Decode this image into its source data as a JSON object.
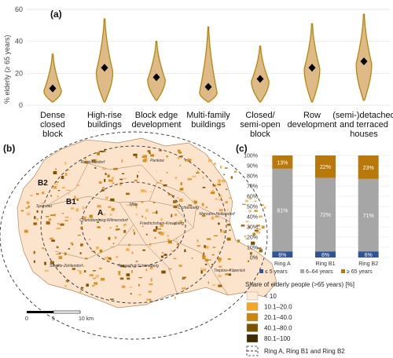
{
  "panels": {
    "a": "(a)",
    "b": "(b)",
    "c": "(c)"
  },
  "chart_data": [
    {
      "type": "violin",
      "ylabel": "% elderly (≥ 65 years)",
      "ylim": [
        0,
        60
      ],
      "yticks": [
        0,
        20,
        40,
        60
      ],
      "fill_color": "#deba86",
      "edge_color": "#b8860b",
      "categories": [
        [
          "Dense",
          "closed",
          "block"
        ],
        [
          "High-rise",
          "buildings"
        ],
        [
          "Block edge",
          "development"
        ],
        [
          "Multi-family",
          "buildings"
        ],
        [
          "Closed/",
          "semi-open",
          "block"
        ],
        [
          "Row",
          "development"
        ],
        [
          "(semi-)detached",
          "and terraced",
          "houses"
        ]
      ],
      "ranges": [
        [
          2,
          32
        ],
        [
          2,
          54
        ],
        [
          3,
          40
        ],
        [
          2,
          49
        ],
        [
          2,
          37
        ],
        [
          2,
          51
        ],
        [
          3,
          57
        ]
      ],
      "modes": [
        9,
        21,
        16,
        8,
        15,
        23,
        26
      ],
      "widths": [
        0.8,
        0.75,
        0.8,
        0.8,
        0.8,
        0.7,
        0.7
      ],
      "means": [
        10.5,
        23.5,
        17.5,
        11.5,
        16.5,
        23.5,
        27.5
      ]
    },
    {
      "type": "stacked_bar",
      "yticks": [
        "0%",
        "10%",
        "20%",
        "30%",
        "40%",
        "50%",
        "60%",
        "70%",
        "80%",
        "90%",
        "100%"
      ],
      "categories": [
        "Ring A",
        "Ring B1",
        "Ring B2"
      ],
      "series": [
        {
          "name": "≤ 5 years",
          "color": "#2f5496",
          "values": [
            6,
            6,
            6
          ],
          "labels": [
            "6%",
            "6%",
            "6%"
          ]
        },
        {
          "name": "6–64 years",
          "color": "#a6a6a6",
          "values": [
            81,
            72,
            71
          ],
          "labels": [
            "81%",
            "72%",
            "71%"
          ]
        },
        {
          "name": "≥ 65 years",
          "color": "#b8790a",
          "values": [
            13,
            22,
            23
          ],
          "labels": [
            "13%",
            "22%",
            "23%"
          ]
        }
      ]
    }
  ],
  "map": {
    "ring_labels": [
      "A",
      "B1",
      "B2"
    ],
    "district_labels": [
      "Reinickendorf",
      "Pankow",
      "Spandau",
      "Mitte",
      "Lichtenberg",
      "Marzahn-Hellersdorf",
      "Charlottenburg-Wilmersdorf",
      "Friedrichshain-Kreuzberg",
      "Steglitz-Zehlendorf",
      "Tempelhof-Schöneberg",
      "Treptow-Köpenick"
    ],
    "scale_labels": [
      "0",
      "5",
      "10 km"
    ],
    "legend_title": "Share of elderly people (>65 years) [%]",
    "legend_items": [
      {
        "label": "< 10",
        "color": "#fde9d4"
      },
      {
        "label": "10.1–20.0",
        "color": "#f5a623"
      },
      {
        "label": "20.1–40.0",
        "color": "#c8860a"
      },
      {
        "label": "40.1–80.0",
        "color": "#7a5200"
      },
      {
        "label": "80.1–100",
        "color": "#3d2a00"
      }
    ],
    "ring_legend": "Ring A, Ring B1 and Ring B2"
  }
}
